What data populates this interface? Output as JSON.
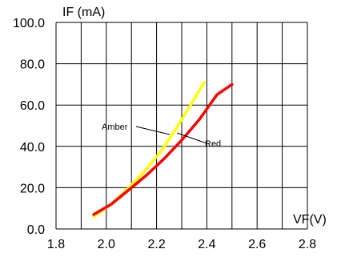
{
  "chart_data": {
    "type": "line",
    "ylabel": "IF (mA)",
    "xlabel": "VF(V)",
    "xlim": [
      1.8,
      2.8
    ],
    "ylim": [
      0,
      100
    ],
    "x_ticks": [
      "1.8",
      "2.0",
      "2.2",
      "2.4",
      "2.6",
      "2.8"
    ],
    "x_tick_values": [
      1.8,
      2.0,
      2.2,
      2.4,
      2.6,
      2.8
    ],
    "y_ticks": [
      "0.0",
      "20.0",
      "40.0",
      "60.0",
      "80.0",
      "100.0"
    ],
    "y_tick_values": [
      0,
      20,
      40,
      60,
      80,
      100
    ],
    "grid": true,
    "series": [
      {
        "name": "Amber",
        "color": "#ffff00",
        "x": [
          1.95,
          2.02,
          2.09,
          2.16,
          2.22,
          2.28,
          2.34,
          2.39
        ],
        "y": [
          6,
          12,
          20,
          29,
          38,
          49,
          61,
          71
        ]
      },
      {
        "name": "Red",
        "color": "#ff0000",
        "x": [
          1.95,
          2.02,
          2.09,
          2.16,
          2.23,
          2.3,
          2.37,
          2.44,
          2.5
        ],
        "y": [
          7,
          12,
          19,
          26,
          34,
          43,
          53,
          65,
          70
        ]
      }
    ],
    "annotations": [
      "Amber",
      "Red"
    ]
  }
}
